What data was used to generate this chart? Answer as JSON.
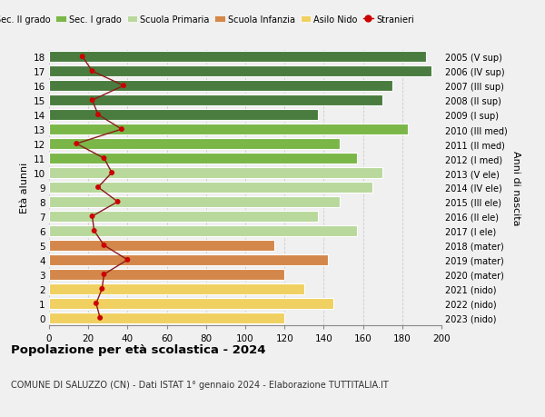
{
  "ages": [
    18,
    17,
    16,
    15,
    14,
    13,
    12,
    11,
    10,
    9,
    8,
    7,
    6,
    5,
    4,
    3,
    2,
    1,
    0
  ],
  "years": [
    "2005 (V sup)",
    "2006 (IV sup)",
    "2007 (III sup)",
    "2008 (II sup)",
    "2009 (I sup)",
    "2010 (III med)",
    "2011 (II med)",
    "2012 (I med)",
    "2013 (V ele)",
    "2014 (IV ele)",
    "2015 (III ele)",
    "2016 (II ele)",
    "2017 (I ele)",
    "2018 (mater)",
    "2019 (mater)",
    "2020 (mater)",
    "2021 (nido)",
    "2022 (nido)",
    "2023 (nido)"
  ],
  "bar_values": [
    192,
    195,
    175,
    170,
    137,
    183,
    148,
    157,
    170,
    165,
    148,
    137,
    157,
    115,
    142,
    120,
    130,
    145,
    120
  ],
  "bar_colors": [
    "#4a7c3f",
    "#4a7c3f",
    "#4a7c3f",
    "#4a7c3f",
    "#4a7c3f",
    "#7ab648",
    "#7ab648",
    "#7ab648",
    "#b8d89c",
    "#b8d89c",
    "#b8d89c",
    "#b8d89c",
    "#b8d89c",
    "#d4874a",
    "#d4874a",
    "#d4874a",
    "#f0d060",
    "#f0d060",
    "#f0d060"
  ],
  "stranieri": [
    17,
    22,
    38,
    22,
    25,
    37,
    14,
    28,
    32,
    25,
    35,
    22,
    23,
    28,
    40,
    28,
    27,
    24,
    26
  ],
  "title": "Popolazione per età scolastica - 2024",
  "subtitle": "COMUNE DI SALUZZO (CN) - Dati ISTAT 1° gennaio 2024 - Elaborazione TUTTITALIA.IT",
  "ylabel_left": "Età alunni",
  "ylabel_right": "Anni di nascita",
  "xlim": [
    0,
    200
  ],
  "xticks": [
    0,
    20,
    40,
    60,
    80,
    100,
    120,
    140,
    160,
    180,
    200
  ],
  "legend_labels": [
    "Sec. II grado",
    "Sec. I grado",
    "Scuola Primaria",
    "Scuola Infanzia",
    "Asilo Nido",
    "Stranieri"
  ],
  "legend_colors": [
    "#4a7c3f",
    "#7ab648",
    "#b8d89c",
    "#d4874a",
    "#f0d060",
    "#cc0000"
  ],
  "bar_height": 0.78,
  "bg_color": "#f0f0f0",
  "grid_color": "#cccccc",
  "line_color": "#8b1a1a",
  "dot_color": "#cc0000"
}
